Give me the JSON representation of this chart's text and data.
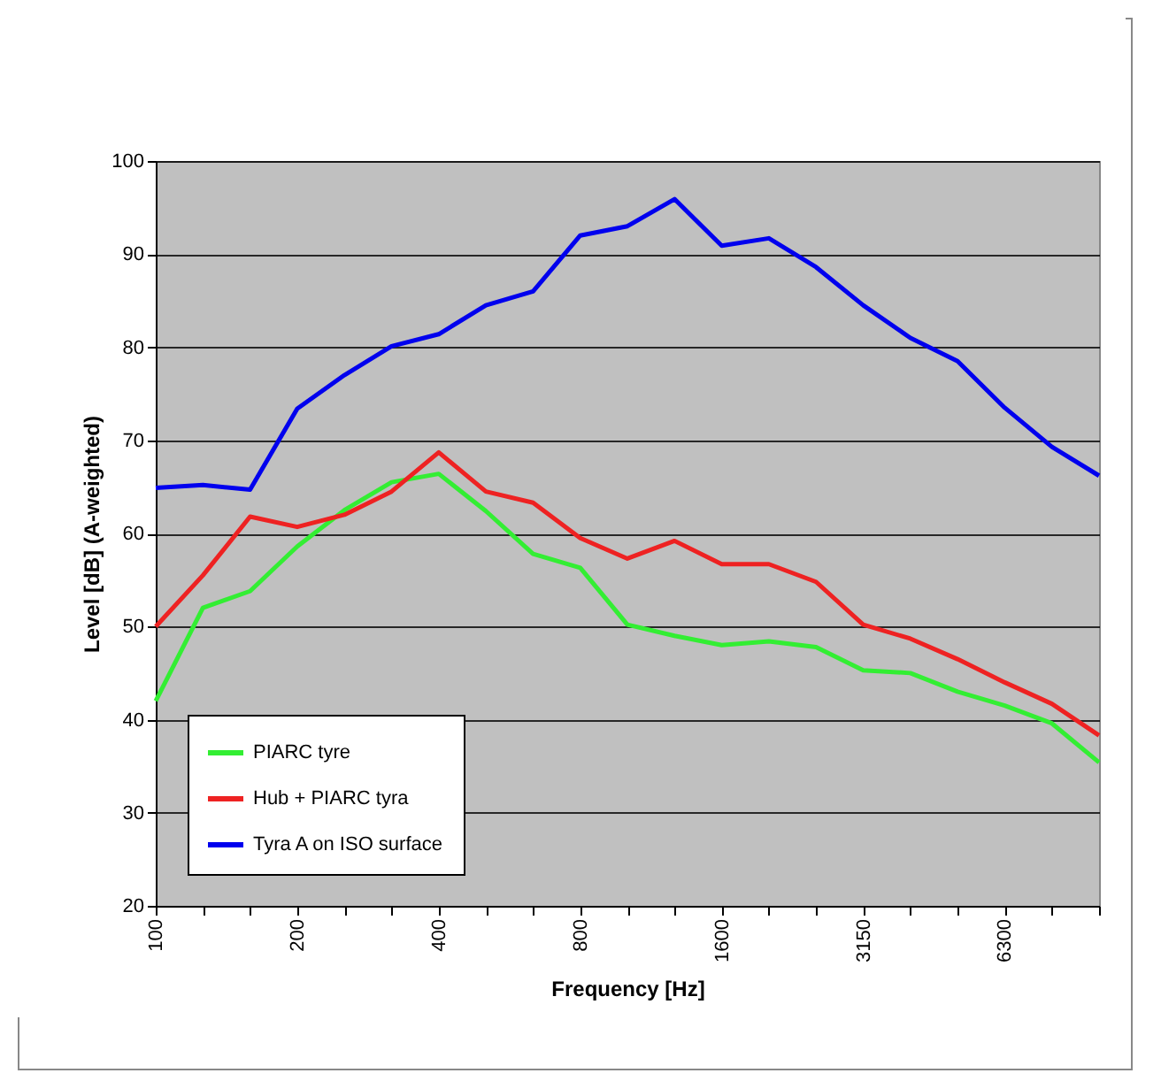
{
  "chart_data": {
    "type": "line",
    "xlabel": "Frequency [Hz]",
    "ylabel": "Level [dB] (A-weighted)",
    "categories": [
      "100",
      null,
      null,
      "200",
      null,
      null,
      "400",
      null,
      null,
      "800",
      null,
      null,
      "1600",
      null,
      null,
      "3150",
      null,
      null,
      "6300",
      null,
      null
    ],
    "ylim": [
      20,
      100
    ],
    "yticks": [
      20,
      30,
      40,
      50,
      60,
      70,
      80,
      90,
      100
    ],
    "grid": "y",
    "legend": "bottom left",
    "series": [
      {
        "name": "PIARC tyre",
        "color": "#33ee33",
        "values": [
          42,
          52,
          53.8,
          58.6,
          62.5,
          65.5,
          66.4,
          62.4,
          57.8,
          56.3,
          50.2,
          49,
          48,
          48.4,
          47.8,
          45.3,
          45,
          43,
          41.5,
          39.6,
          35.4
        ]
      },
      {
        "name": "Hub + PIARC tyra",
        "color": "#ee2222",
        "values": [
          50,
          55.5,
          61.8,
          60.7,
          62,
          64.5,
          68.7,
          64.5,
          63.3,
          59.5,
          57.3,
          59.2,
          56.7,
          56.7,
          54.8,
          50.2,
          48.7,
          46.5,
          44,
          41.7,
          38.3
        ]
      },
      {
        "name": "Tyra A on ISO surface",
        "color": "#0000ee",
        "values": [
          64.9,
          65.2,
          64.7,
          73.4,
          77,
          80.1,
          81.4,
          84.5,
          86,
          92,
          93,
          95.9,
          90.9,
          91.7,
          88.6,
          84.5,
          81,
          78.5,
          73.5,
          69.3,
          66.2
        ]
      }
    ]
  }
}
